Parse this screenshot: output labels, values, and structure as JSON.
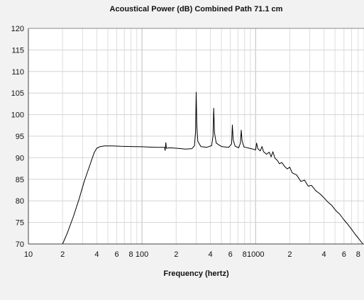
{
  "chart_data": {
    "type": "line",
    "title": "Acoustical Power (dB)    Combined    Path 71.1 cm",
    "xlabel": "Frequency (hertz)",
    "ylabel": "",
    "x_scale": "log",
    "xlim": [
      10,
      9000
    ],
    "ylim": [
      70,
      120
    ],
    "y_ticks": [
      70,
      75,
      80,
      85,
      90,
      95,
      100,
      105,
      110,
      115,
      120
    ],
    "x_ticks": [
      {
        "value": 10,
        "label": "10"
      },
      {
        "value": 20,
        "label": "2"
      },
      {
        "value": 40,
        "label": "4"
      },
      {
        "value": 60,
        "label": "6"
      },
      {
        "value": 80,
        "label": "8"
      },
      {
        "value": 100,
        "label": "100"
      },
      {
        "value": 200,
        "label": "2"
      },
      {
        "value": 400,
        "label": "4"
      },
      {
        "value": 600,
        "label": "6"
      },
      {
        "value": 800,
        "label": "8"
      },
      {
        "value": 1000,
        "label": "1000"
      },
      {
        "value": 2000,
        "label": "2"
      },
      {
        "value": 4000,
        "label": "4"
      },
      {
        "value": 6000,
        "label": "6"
      },
      {
        "value": 8000,
        "label": "8"
      }
    ],
    "grid": true,
    "series": [
      {
        "color": "#000000",
        "points": [
          [
            20,
            70.0
          ],
          [
            22,
            72.5
          ],
          [
            25,
            76.5
          ],
          [
            28,
            80.5
          ],
          [
            31,
            84.5
          ],
          [
            35,
            88.5
          ],
          [
            38,
            91.2
          ],
          [
            40,
            92.2
          ],
          [
            43,
            92.6
          ],
          [
            47,
            92.75
          ],
          [
            55,
            92.75
          ],
          [
            65,
            92.65
          ],
          [
            80,
            92.6
          ],
          [
            100,
            92.55
          ],
          [
            120,
            92.45
          ],
          [
            140,
            92.4
          ],
          [
            158,
            92.4
          ],
          [
            160,
            91.7
          ],
          [
            162,
            93.5
          ],
          [
            164,
            92.2
          ],
          [
            175,
            92.3
          ],
          [
            200,
            92.2
          ],
          [
            240,
            92.0
          ],
          [
            275,
            92.1
          ],
          [
            290,
            92.8
          ],
          [
            296,
            96.0
          ],
          [
            300,
            105.2
          ],
          [
            304,
            97.5
          ],
          [
            310,
            93.8
          ],
          [
            330,
            92.6
          ],
          [
            370,
            92.4
          ],
          [
            410,
            92.8
          ],
          [
            422,
            95.0
          ],
          [
            428,
            101.5
          ],
          [
            435,
            95.8
          ],
          [
            450,
            93.4
          ],
          [
            500,
            92.6
          ],
          [
            580,
            92.4
          ],
          [
            615,
            93.2
          ],
          [
            625,
            97.6
          ],
          [
            635,
            94.2
          ],
          [
            660,
            92.7
          ],
          [
            710,
            92.3
          ],
          [
            735,
            93.4
          ],
          [
            748,
            96.4
          ],
          [
            760,
            94.0
          ],
          [
            790,
            92.5
          ],
          [
            880,
            92.2
          ],
          [
            950,
            92.0
          ],
          [
            1000,
            91.8
          ],
          [
            1020,
            93.4
          ],
          [
            1045,
            92.1
          ],
          [
            1100,
            91.6
          ],
          [
            1140,
            92.6
          ],
          [
            1175,
            91.4
          ],
          [
            1250,
            90.8
          ],
          [
            1320,
            91.3
          ],
          [
            1370,
            90.2
          ],
          [
            1420,
            91.4
          ],
          [
            1480,
            89.9
          ],
          [
            1550,
            89.4
          ],
          [
            1620,
            88.6
          ],
          [
            1700,
            88.9
          ],
          [
            1800,
            88.0
          ],
          [
            1900,
            87.4
          ],
          [
            2000,
            87.8
          ],
          [
            2100,
            86.5
          ],
          [
            2300,
            86.0
          ],
          [
            2500,
            84.5
          ],
          [
            2700,
            84.8
          ],
          [
            2900,
            83.4
          ],
          [
            3100,
            83.6
          ],
          [
            3400,
            82.3
          ],
          [
            3700,
            81.6
          ],
          [
            4000,
            80.7
          ],
          [
            4300,
            79.8
          ],
          [
            4700,
            78.9
          ],
          [
            5100,
            77.7
          ],
          [
            5500,
            76.9
          ],
          [
            6000,
            75.6
          ],
          [
            6500,
            74.5
          ],
          [
            7000,
            73.4
          ],
          [
            7500,
            72.3
          ],
          [
            8000,
            71.4
          ],
          [
            8500,
            70.5
          ],
          [
            8800,
            70.0
          ]
        ]
      }
    ]
  }
}
